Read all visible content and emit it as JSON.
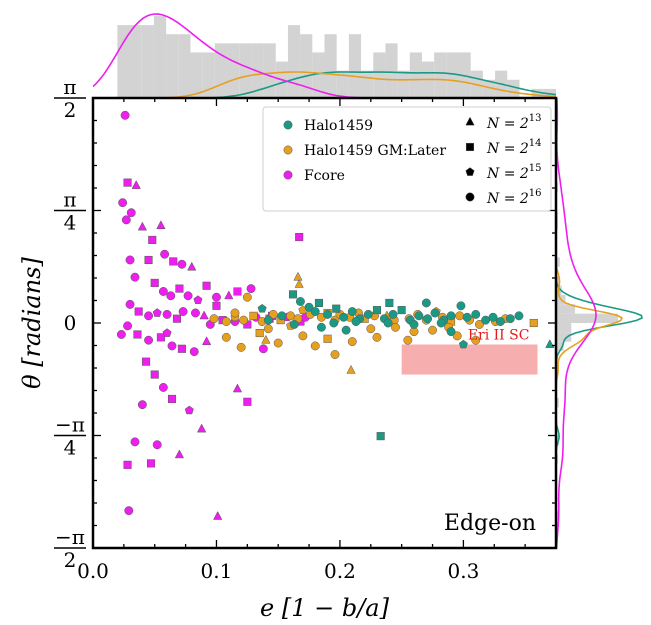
{
  "chart_data": {
    "type": "scatter",
    "xlabel": "e [1 − b/a]",
    "ylabel": "θ [radians]",
    "xlim": [
      0.0,
      0.375
    ],
    "ylim": [
      -1.5708,
      1.5708
    ],
    "x_ticks": [
      {
        "value": 0.0,
        "label": "0.0"
      },
      {
        "value": 0.1,
        "label": "0.1"
      },
      {
        "value": 0.2,
        "label": "0.2"
      },
      {
        "value": 0.3,
        "label": "0.3"
      }
    ],
    "y_ticks": [
      {
        "value": 1.5708,
        "num": "π",
        "den": "2"
      },
      {
        "value": 0.7854,
        "num": "π",
        "den": "4"
      },
      {
        "value": 0.0,
        "num": "0",
        "den": ""
      },
      {
        "value": -0.7854,
        "num": "−π",
        "den": "4"
      },
      {
        "value": -1.5708,
        "num": "−π",
        "den": "2"
      }
    ],
    "annotation": "Edge-on",
    "region": {
      "label": "Eri II SC",
      "color": "#f5a0a0",
      "x": [
        0.25,
        0.36
      ],
      "y": [
        -0.36,
        -0.15
      ]
    },
    "colors": {
      "Halo1459": "#1a9a85",
      "Halo1459 GM:Later": "#e6a020",
      "Fcore": "#ee1fee"
    },
    "legend_position": "top-right",
    "legend": {
      "series": [
        {
          "name": "Halo1459",
          "color": "#1a9a85"
        },
        {
          "name": "Halo1459 GM:Later",
          "color": "#e6a020"
        },
        {
          "name": "Fcore",
          "color": "#ee1fee"
        }
      ],
      "markers": [
        {
          "shape": "triangle",
          "base": "N = 2",
          "exp": "13"
        },
        {
          "shape": "square",
          "base": "N = 2",
          "exp": "14"
        },
        {
          "shape": "pentagon",
          "base": "N = 2",
          "exp": "15"
        },
        {
          "shape": "circle",
          "base": "N = 2",
          "exp": "16"
        }
      ]
    },
    "series": [
      {
        "name": "Fcore",
        "points": [
          [
            0.026,
            1.45,
            "circle"
          ],
          [
            0.028,
            0.98,
            "square"
          ],
          [
            0.035,
            0.96,
            "triangle"
          ],
          [
            0.024,
            0.84,
            "circle"
          ],
          [
            0.031,
            0.77,
            "circle"
          ],
          [
            0.027,
            0.72,
            "circle"
          ],
          [
            0.04,
            0.67,
            "triangle"
          ],
          [
            0.055,
            0.68,
            "triangle"
          ],
          [
            0.048,
            0.58,
            "square"
          ],
          [
            0.03,
            0.44,
            "circle"
          ],
          [
            0.045,
            0.44,
            "square"
          ],
          [
            0.058,
            0.48,
            "circle"
          ],
          [
            0.065,
            0.43,
            "square"
          ],
          [
            0.072,
            0.41,
            "circle"
          ],
          [
            0.08,
            0.39,
            "triangle"
          ],
          [
            0.034,
            0.32,
            "circle"
          ],
          [
            0.05,
            0.28,
            "square"
          ],
          [
            0.057,
            0.22,
            "circle"
          ],
          [
            0.063,
            0.19,
            "circle"
          ],
          [
            0.07,
            0.24,
            "square"
          ],
          [
            0.077,
            0.19,
            "circle"
          ],
          [
            0.085,
            0.16,
            "pentagon"
          ],
          [
            0.092,
            0.26,
            "square"
          ],
          [
            0.1,
            0.18,
            "circle"
          ],
          [
            0.11,
            0.19,
            "triangle"
          ],
          [
            0.117,
            0.22,
            "square"
          ],
          [
            0.128,
            0.24,
            "circle"
          ],
          [
            0.1,
            0.12,
            "square"
          ],
          [
            0.03,
            0.13,
            "circle"
          ],
          [
            0.037,
            0.08,
            "square"
          ],
          [
            0.045,
            0.05,
            "circle"
          ],
          [
            0.052,
            0.07,
            "pentagon"
          ],
          [
            0.06,
            0.06,
            "circle"
          ],
          [
            0.068,
            0.03,
            "square"
          ],
          [
            0.073,
            0.08,
            "circle"
          ],
          [
            0.083,
            0.07,
            "circle"
          ],
          [
            0.09,
            0.05,
            "triangle"
          ],
          [
            0.095,
            -0.01,
            "circle"
          ],
          [
            0.105,
            0.02,
            "square"
          ],
          [
            0.115,
            0.01,
            "circle"
          ],
          [
            0.125,
            -0.01,
            "square"
          ],
          [
            0.132,
            0.04,
            "circle"
          ],
          [
            0.143,
            0.03,
            "square"
          ],
          [
            0.157,
            0.04,
            "pentagon"
          ],
          [
            0.168,
            0.01,
            "square"
          ],
          [
            0.172,
            0.04,
            "circle"
          ],
          [
            0.028,
            -0.02,
            "circle"
          ],
          [
            0.036,
            -0.08,
            "square"
          ],
          [
            0.045,
            -0.12,
            "circle"
          ],
          [
            0.055,
            -0.1,
            "square"
          ],
          [
            0.064,
            -0.16,
            "circle"
          ],
          [
            0.072,
            -0.18,
            "square"
          ],
          [
            0.082,
            -0.2,
            "circle"
          ],
          [
            0.092,
            -0.13,
            "triangle"
          ],
          [
            0.06,
            -0.07,
            "pentagon"
          ],
          [
            0.023,
            -0.08,
            "circle"
          ],
          [
            0.043,
            -0.27,
            "square"
          ],
          [
            0.05,
            -0.36,
            "square"
          ],
          [
            0.057,
            -0.45,
            "circle"
          ],
          [
            0.064,
            -0.53,
            "square"
          ],
          [
            0.04,
            -0.57,
            "circle"
          ],
          [
            0.078,
            -0.61,
            "pentagon"
          ],
          [
            0.088,
            -0.74,
            "triangle"
          ],
          [
            0.034,
            -0.83,
            "circle"
          ],
          [
            0.052,
            -0.85,
            "circle"
          ],
          [
            0.07,
            -0.92,
            "triangle"
          ],
          [
            0.028,
            -0.99,
            "square"
          ],
          [
            0.047,
            -0.98,
            "square"
          ],
          [
            0.029,
            -1.31,
            "circle"
          ],
          [
            0.101,
            -1.35,
            "triangle"
          ],
          [
            0.117,
            -0.46,
            "triangle"
          ],
          [
            0.125,
            -0.55,
            "square"
          ],
          [
            0.138,
            -0.18,
            "circle"
          ],
          [
            0.167,
            0.6,
            "square"
          ],
          [
            0.145,
            0.05,
            "square"
          ]
        ]
      },
      {
        "name": "Halo1459 GM:Later",
        "points": [
          [
            0.098,
            0.03,
            "circle"
          ],
          [
            0.108,
            0.01,
            "circle"
          ],
          [
            0.115,
            0.04,
            "pentagon"
          ],
          [
            0.122,
            0.02,
            "circle"
          ],
          [
            0.13,
            0.05,
            "square"
          ],
          [
            0.137,
            0.01,
            "circle"
          ],
          [
            0.146,
            0.06,
            "circle"
          ],
          [
            0.152,
            0.02,
            "square"
          ],
          [
            0.16,
            0.05,
            "circle"
          ],
          [
            0.166,
            0.03,
            "circle"
          ],
          [
            0.17,
            0.09,
            "pentagon"
          ],
          [
            0.176,
            0.06,
            "circle"
          ],
          [
            0.185,
            0.04,
            "circle"
          ],
          [
            0.19,
            0.07,
            "square"
          ],
          [
            0.196,
            0.02,
            "circle"
          ],
          [
            0.2,
            0.06,
            "circle"
          ],
          [
            0.208,
            0.04,
            "circle"
          ],
          [
            0.215,
            0.07,
            "circle"
          ],
          [
            0.22,
            0.03,
            "square"
          ],
          [
            0.228,
            0.05,
            "circle"
          ],
          [
            0.238,
            0.05,
            "triangle"
          ],
          [
            0.244,
            0.02,
            "circle"
          ],
          [
            0.256,
            0.03,
            "circle"
          ],
          [
            0.263,
            0.06,
            "circle"
          ],
          [
            0.27,
            0.02,
            "circle"
          ],
          [
            0.278,
            0.08,
            "pentagon"
          ],
          [
            0.283,
            0.04,
            "circle"
          ],
          [
            0.29,
            0.01,
            "square"
          ],
          [
            0.297,
            0.05,
            "circle"
          ],
          [
            0.305,
            0.02,
            "circle"
          ],
          [
            0.313,
            -0.01,
            "circle"
          ],
          [
            0.326,
            0.01,
            "circle"
          ],
          [
            0.334,
            0.03,
            "circle"
          ],
          [
            0.357,
            0.0,
            "square"
          ],
          [
            0.135,
            -0.07,
            "square"
          ],
          [
            0.14,
            -0.12,
            "triangle"
          ],
          [
            0.15,
            -0.14,
            "circle"
          ],
          [
            0.17,
            -0.09,
            "circle"
          ],
          [
            0.18,
            -0.16,
            "circle"
          ],
          [
            0.19,
            -0.11,
            "square"
          ],
          [
            0.21,
            -0.13,
            "circle"
          ],
          [
            0.23,
            -0.1,
            "circle"
          ],
          [
            0.255,
            -0.12,
            "circle"
          ],
          [
            0.275,
            -0.05,
            "circle"
          ],
          [
            0.295,
            -0.09,
            "circle"
          ],
          [
            0.31,
            -0.12,
            "circle"
          ],
          [
            0.12,
            -0.17,
            "circle"
          ],
          [
            0.108,
            -0.1,
            "circle"
          ],
          [
            0.196,
            -0.22,
            "circle"
          ],
          [
            0.209,
            -0.33,
            "triangle"
          ],
          [
            0.166,
            0.32,
            "triangle"
          ],
          [
            0.167,
            0.27,
            "triangle"
          ],
          [
            0.125,
            0.18,
            "circle"
          ],
          [
            0.115,
            0.07,
            "circle"
          ],
          [
            0.142,
            -0.04,
            "circle"
          ],
          [
            0.16,
            -0.02,
            "pentagon"
          ],
          [
            0.225,
            -0.04,
            "circle"
          ],
          [
            0.245,
            -0.03,
            "circle"
          ],
          [
            0.26,
            -0.06,
            "circle"
          ],
          [
            0.288,
            -0.03,
            "circle"
          ]
        ]
      },
      {
        "name": "Halo1459",
        "points": [
          [
            0.162,
            0.2,
            "square"
          ],
          [
            0.168,
            0.15,
            "circle"
          ],
          [
            0.175,
            0.11,
            "circle"
          ],
          [
            0.183,
            0.14,
            "square"
          ],
          [
            0.19,
            0.06,
            "circle"
          ],
          [
            0.197,
            0.1,
            "square"
          ],
          [
            0.203,
            0.04,
            "circle"
          ],
          [
            0.21,
            0.08,
            "circle"
          ],
          [
            0.216,
            0.03,
            "circle"
          ],
          [
            0.223,
            0.06,
            "circle"
          ],
          [
            0.23,
            0.09,
            "square"
          ],
          [
            0.236,
            0.03,
            "circle"
          ],
          [
            0.243,
            0.06,
            "circle"
          ],
          [
            0.25,
            0.09,
            "square"
          ],
          [
            0.257,
            0.02,
            "circle"
          ],
          [
            0.264,
            0.05,
            "circle"
          ],
          [
            0.271,
            0.03,
            "circle"
          ],
          [
            0.277,
            0.07,
            "circle"
          ],
          [
            0.284,
            0.02,
            "circle"
          ],
          [
            0.29,
            0.05,
            "circle"
          ],
          [
            0.298,
            0.12,
            "circle"
          ],
          [
            0.303,
            0.04,
            "circle"
          ],
          [
            0.31,
            0.06,
            "circle"
          ],
          [
            0.318,
            0.02,
            "circle"
          ],
          [
            0.324,
            0.04,
            "circle"
          ],
          [
            0.33,
            0.01,
            "circle"
          ],
          [
            0.338,
            0.03,
            "circle"
          ],
          [
            0.345,
            0.05,
            "circle"
          ],
          [
            0.37,
            -0.15,
            "triangle"
          ],
          [
            0.3,
            -0.15,
            "pentagon"
          ],
          [
            0.18,
            0.08,
            "circle"
          ],
          [
            0.195,
            0.0,
            "circle"
          ],
          [
            0.213,
            0.01,
            "circle"
          ],
          [
            0.239,
            0.0,
            "circle"
          ],
          [
            0.26,
            -0.01,
            "circle"
          ],
          [
            0.282,
            0.0,
            "circle"
          ],
          [
            0.142,
            0.02,
            "circle"
          ],
          [
            0.153,
            0.05,
            "circle"
          ],
          [
            0.163,
            -0.01,
            "circle"
          ],
          [
            0.185,
            -0.03,
            "circle"
          ],
          [
            0.205,
            -0.05,
            "circle"
          ],
          [
            0.137,
            0.1,
            "pentagon"
          ],
          [
            0.29,
            -0.06,
            "circle"
          ],
          [
            0.233,
            -0.79,
            "square"
          ],
          [
            0.27,
            0.14,
            "circle"
          ],
          [
            0.24,
            0.14,
            "square"
          ]
        ]
      }
    ]
  }
}
